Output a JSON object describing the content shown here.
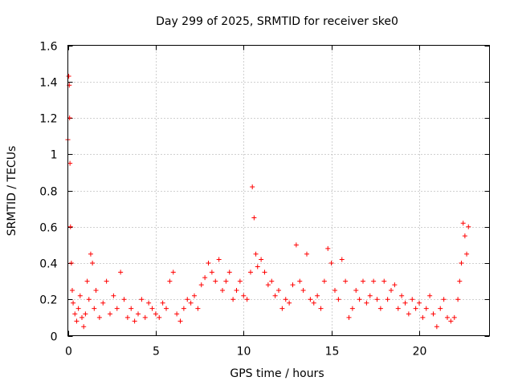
{
  "chart_data": {
    "type": "scatter",
    "title": "Day 299 of 2025, SRMTID for receiver ske0",
    "xlabel": "GPS time / hours",
    "ylabel": "SRMTID / TECUs",
    "xlim": [
      0,
      24
    ],
    "ylim": [
      0,
      1.6
    ],
    "x_ticks": [
      0,
      5,
      10,
      15,
      20
    ],
    "x_tick_labels": [
      "0",
      "5",
      "10",
      "15",
      "20"
    ],
    "y_ticks": [
      0,
      0.2,
      0.4,
      0.6,
      0.8,
      1.0,
      1.2,
      1.4,
      1.6
    ],
    "y_tick_labels": [
      "0",
      "0.2",
      "0.4",
      "0.6",
      "0.8",
      "1",
      "1.2",
      "1.4",
      "1.6"
    ],
    "grid": true,
    "marker": "plus",
    "marker_color": "#ff0000",
    "series": [
      {
        "name": "SRMTID",
        "x": [
          0.0,
          0.05,
          0.08,
          0.1,
          0.12,
          0.15,
          0.2,
          0.25,
          0.3,
          0.4,
          0.5,
          0.6,
          0.7,
          0.8,
          0.9,
          1.0,
          1.1,
          1.2,
          1.3,
          1.4,
          1.5,
          1.6,
          1.8,
          2.0,
          2.2,
          2.4,
          2.6,
          2.8,
          3.0,
          3.2,
          3.4,
          3.6,
          3.8,
          4.0,
          4.2,
          4.4,
          4.6,
          4.8,
          5.0,
          5.2,
          5.4,
          5.6,
          5.8,
          6.0,
          6.2,
          6.4,
          6.6,
          6.8,
          7.0,
          7.2,
          7.4,
          7.6,
          7.8,
          8.0,
          8.2,
          8.4,
          8.6,
          8.8,
          9.0,
          9.2,
          9.4,
          9.6,
          9.8,
          10.0,
          10.2,
          10.4,
          10.5,
          10.6,
          10.7,
          10.8,
          11.0,
          11.2,
          11.4,
          11.6,
          11.8,
          12.0,
          12.2,
          12.4,
          12.6,
          12.8,
          13.0,
          13.2,
          13.4,
          13.6,
          13.8,
          14.0,
          14.2,
          14.4,
          14.6,
          14.8,
          15.0,
          15.2,
          15.4,
          15.6,
          15.8,
          16.0,
          16.2,
          16.4,
          16.6,
          16.8,
          17.0,
          17.2,
          17.4,
          17.6,
          17.8,
          18.0,
          18.2,
          18.4,
          18.6,
          18.8,
          19.0,
          19.2,
          19.4,
          19.6,
          19.8,
          20.0,
          20.2,
          20.4,
          20.6,
          20.8,
          21.0,
          21.2,
          21.4,
          21.6,
          21.8,
          22.0,
          22.2,
          22.3,
          22.4,
          22.5,
          22.6,
          22.7,
          22.8
        ],
        "values": [
          1.08,
          1.43,
          1.38,
          1.2,
          0.95,
          0.6,
          0.4,
          0.25,
          0.18,
          0.12,
          0.08,
          0.15,
          0.22,
          0.1,
          0.05,
          0.12,
          0.3,
          0.2,
          0.45,
          0.4,
          0.15,
          0.25,
          0.1,
          0.18,
          0.3,
          0.12,
          0.22,
          0.15,
          0.35,
          0.2,
          0.1,
          0.15,
          0.08,
          0.12,
          0.2,
          0.1,
          0.18,
          0.15,
          0.12,
          0.1,
          0.18,
          0.15,
          0.3,
          0.35,
          0.12,
          0.08,
          0.15,
          0.2,
          0.18,
          0.22,
          0.15,
          0.28,
          0.32,
          0.4,
          0.35,
          0.3,
          0.42,
          0.25,
          0.3,
          0.35,
          0.2,
          0.25,
          0.3,
          0.22,
          0.2,
          0.35,
          0.82,
          0.65,
          0.45,
          0.38,
          0.42,
          0.35,
          0.28,
          0.3,
          0.22,
          0.25,
          0.15,
          0.2,
          0.18,
          0.28,
          0.5,
          0.3,
          0.25,
          0.45,
          0.2,
          0.18,
          0.22,
          0.15,
          0.3,
          0.48,
          0.4,
          0.25,
          0.2,
          0.42,
          0.3,
          0.1,
          0.15,
          0.25,
          0.2,
          0.3,
          0.18,
          0.22,
          0.3,
          0.2,
          0.15,
          0.3,
          0.2,
          0.25,
          0.28,
          0.15,
          0.22,
          0.18,
          0.12,
          0.2,
          0.15,
          0.18,
          0.1,
          0.15,
          0.22,
          0.12,
          0.05,
          0.15,
          0.2,
          0.1,
          0.08,
          0.1,
          0.2,
          0.3,
          0.4,
          0.62,
          0.55,
          0.45,
          0.6
        ]
      }
    ]
  }
}
